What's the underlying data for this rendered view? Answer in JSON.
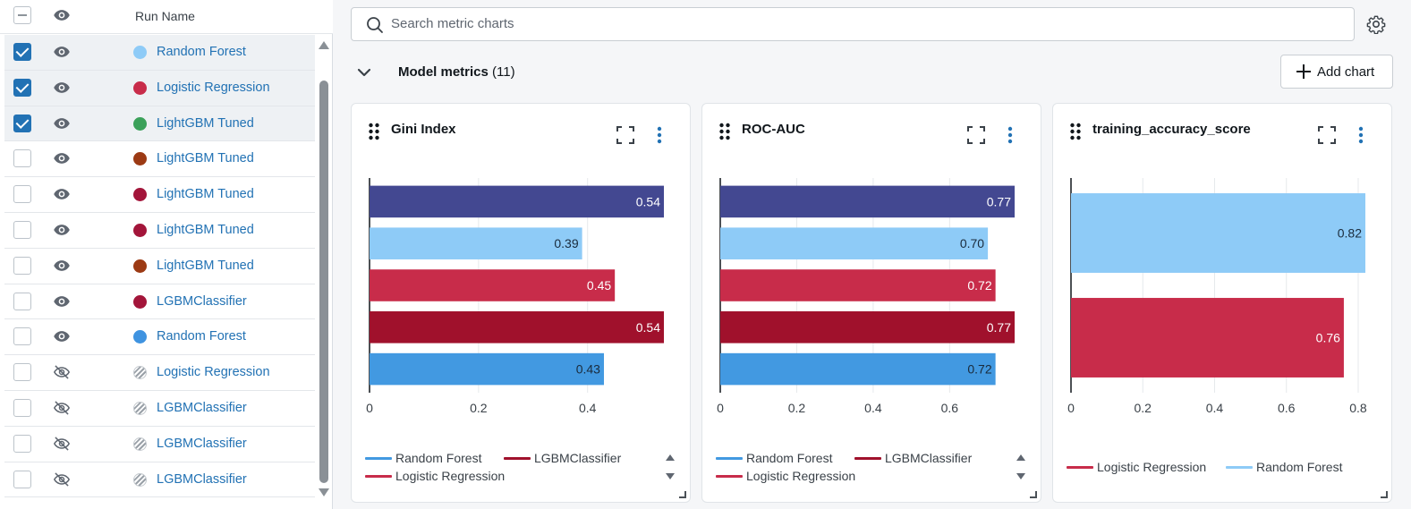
{
  "runs_table": {
    "header": {
      "column_run_name": "Run Name"
    },
    "rows": [
      {
        "name": "Random Forest",
        "checked": true,
        "visible": true,
        "color": "#8ecbf7"
      },
      {
        "name": "Logistic Regression",
        "checked": true,
        "visible": true,
        "color": "#c82c4a"
      },
      {
        "name": "LightGBM Tuned",
        "checked": true,
        "visible": true,
        "color": "#3ba15a"
      },
      {
        "name": "LightGBM Tuned",
        "checked": false,
        "visible": true,
        "color": "#9c3a14"
      },
      {
        "name": "LightGBM Tuned",
        "checked": false,
        "visible": true,
        "color": "#a3153a"
      },
      {
        "name": "LightGBM Tuned",
        "checked": false,
        "visible": true,
        "color": "#a3153a"
      },
      {
        "name": "LightGBM Tuned",
        "checked": false,
        "visible": true,
        "color": "#9c3a14"
      },
      {
        "name": "LGBMClassifier",
        "checked": false,
        "visible": true,
        "color": "#a3153a"
      },
      {
        "name": "Random Forest",
        "checked": false,
        "visible": true,
        "color": "#3f93e0"
      },
      {
        "name": "Logistic Regression",
        "checked": false,
        "visible": false,
        "color": "hatched"
      },
      {
        "name": "LGBMClassifier",
        "checked": false,
        "visible": false,
        "color": "hatched"
      },
      {
        "name": "LGBMClassifier",
        "checked": false,
        "visible": false,
        "color": "hatched"
      },
      {
        "name": "LGBMClassifier",
        "checked": false,
        "visible": false,
        "color": "hatched"
      }
    ]
  },
  "search": {
    "placeholder": "Search metric charts",
    "value": ""
  },
  "section": {
    "title": "Model metrics",
    "count": "(11)",
    "collapse_icon": "chevron-down-icon"
  },
  "toolbar": {
    "add_chart_label": "Add chart",
    "settings_icon": "gear-icon"
  },
  "colors": {
    "accent": "#2272b4",
    "navy": "#434891",
    "light_blue": "#8ecbf7",
    "red": "#c82c4a",
    "dark_red": "#a0112c",
    "blue": "#4299e1"
  },
  "chart_data": [
    {
      "type": "bar",
      "orientation": "horizontal",
      "title": "Gini Index",
      "bars": [
        {
          "value": 0.54,
          "label": "0.54",
          "color": "#434891"
        },
        {
          "value": 0.39,
          "label": "0.39",
          "color": "#8ecbf7"
        },
        {
          "value": 0.45,
          "label": "0.45",
          "color": "#c82c4a"
        },
        {
          "value": 0.54,
          "label": "0.54",
          "color": "#a0112c"
        },
        {
          "value": 0.43,
          "label": "0.43",
          "color": "#4299e1"
        }
      ],
      "xticks": [
        "0",
        "0.2",
        "0.4"
      ],
      "xlim": [
        0,
        0.54
      ],
      "grid": true,
      "legend": [
        {
          "name": "Random Forest",
          "color": "#4299e1"
        },
        {
          "name": "LGBMClassifier",
          "color": "#a0112c"
        },
        {
          "name": "Logistic Regression",
          "color": "#c82c4a"
        }
      ],
      "legend_placement": "bottom"
    },
    {
      "type": "bar",
      "orientation": "horizontal",
      "title": "ROC-AUC",
      "bars": [
        {
          "value": 0.77,
          "label": "0.77",
          "color": "#434891"
        },
        {
          "value": 0.7,
          "label": "0.70",
          "color": "#8ecbf7"
        },
        {
          "value": 0.72,
          "label": "0.72",
          "color": "#c82c4a"
        },
        {
          "value": 0.77,
          "label": "0.77",
          "color": "#a0112c"
        },
        {
          "value": 0.72,
          "label": "0.72",
          "color": "#4299e1"
        }
      ],
      "xticks": [
        "0",
        "0.2",
        "0.4",
        "0.6"
      ],
      "xlim": [
        0,
        0.77
      ],
      "grid": true,
      "legend": [
        {
          "name": "Random Forest",
          "color": "#4299e1"
        },
        {
          "name": "LGBMClassifier",
          "color": "#a0112c"
        },
        {
          "name": "Logistic Regression",
          "color": "#c82c4a"
        }
      ],
      "legend_placement": "bottom"
    },
    {
      "type": "bar",
      "orientation": "horizontal",
      "title": "training_accuracy_score",
      "bars": [
        {
          "value": 0.82,
          "label": "0.82",
          "color": "#8ecbf7"
        },
        {
          "value": 0.76,
          "label": "0.76",
          "color": "#c82c4a"
        }
      ],
      "xticks": [
        "0",
        "0.2",
        "0.4",
        "0.6",
        "0.8"
      ],
      "xlim": [
        0,
        0.82
      ],
      "grid": true,
      "legend": [
        {
          "name": "Logistic Regression",
          "color": "#c82c4a"
        },
        {
          "name": "Random Forest",
          "color": "#8ecbf7"
        }
      ],
      "legend_placement": "bottom"
    }
  ]
}
